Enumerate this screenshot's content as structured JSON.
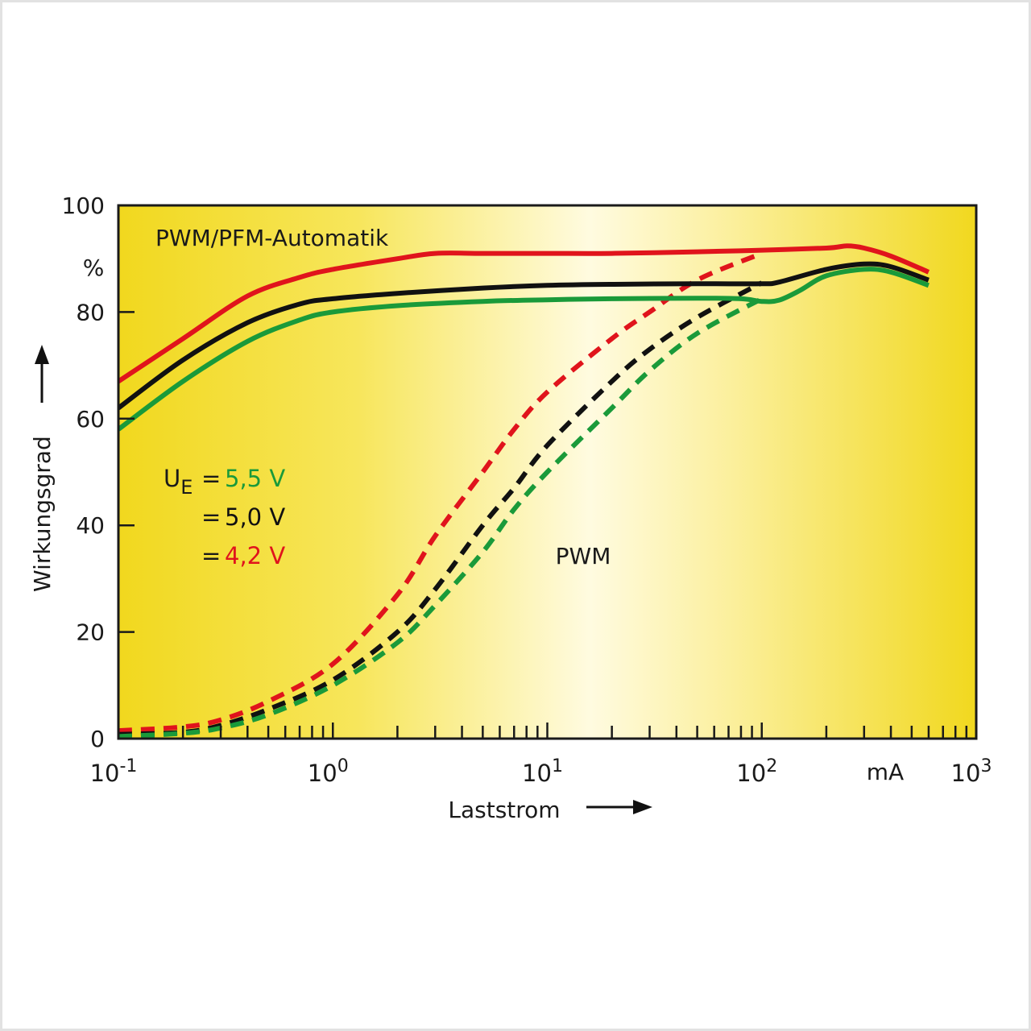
{
  "chart_data": {
    "type": "line",
    "title": "PWM/PFM-Automatik",
    "xlabel": "Laststrom",
    "ylabel": "Wirkungsgrad",
    "x_unit": "mA",
    "y_unit": "%",
    "x_scale": "log",
    "xlim": [
      0.1,
      1000
    ],
    "ylim": [
      0,
      100
    ],
    "x_ticks": [
      {
        "base": "10",
        "exp": "-1"
      },
      {
        "base": "10",
        "exp": "0"
      },
      {
        "base": "10",
        "exp": "1"
      },
      {
        "base": "10",
        "exp": "2"
      },
      {
        "base": "10",
        "exp": "3"
      }
    ],
    "y_ticks": [
      "0",
      "20",
      "40",
      "60",
      "80",
      "100"
    ],
    "grid": false,
    "legend": {
      "symbol": "U",
      "subscript": "E",
      "entries": [
        {
          "text": "5,5 V",
          "color": "#1a9a3a"
        },
        {
          "text": "5,0 V",
          "color": "#111111"
        },
        {
          "text": "4,2 V",
          "color": "#e0141c"
        }
      ]
    },
    "annotations": {
      "pwm_label": "PWM"
    },
    "series": [
      {
        "group": "PWM/PFM-Automatik",
        "voltage": "4,2 V",
        "color": "#e0141c",
        "dash": false,
        "x": [
          0.1,
          0.2,
          0.4,
          0.7,
          1,
          2,
          3,
          5,
          10,
          20,
          50,
          100,
          200,
          250,
          300,
          400,
          600
        ],
        "y": [
          67,
          75,
          83,
          86.5,
          88,
          90,
          91,
          91,
          91,
          91,
          91.3,
          91.6,
          92,
          92.4,
          92,
          90.5,
          87.5
        ]
      },
      {
        "group": "PWM/PFM-Automatik",
        "voltage": "5,0 V",
        "color": "#111111",
        "dash": false,
        "x": [
          0.1,
          0.2,
          0.4,
          0.7,
          1,
          2,
          5,
          10,
          20,
          50,
          100,
          120,
          200,
          300,
          400,
          600
        ],
        "y": [
          62,
          71,
          78,
          81.5,
          82.5,
          83.5,
          84.5,
          85,
          85.2,
          85.3,
          85.3,
          85.6,
          88,
          89,
          88.5,
          86
        ]
      },
      {
        "group": "PWM/PFM-Automatik",
        "voltage": "5,5 V",
        "color": "#1a9a3a",
        "dash": false,
        "x": [
          0.1,
          0.2,
          0.4,
          0.7,
          1,
          2,
          5,
          10,
          20,
          50,
          80,
          100,
          120,
          150,
          200,
          300,
          400,
          600
        ],
        "y": [
          58,
          67,
          74.5,
          78.5,
          80,
          81.2,
          82,
          82.3,
          82.5,
          82.6,
          82.5,
          82,
          82.2,
          84,
          86.8,
          88,
          87.5,
          85
        ]
      },
      {
        "group": "PWM",
        "voltage": "4,2 V",
        "color": "#e0141c",
        "dash": true,
        "x": [
          0.1,
          0.2,
          0.3,
          0.5,
          1,
          2,
          3,
          5,
          7,
          10,
          20,
          30,
          50,
          100
        ],
        "y": [
          1.5,
          2.2,
          3.5,
          7,
          14,
          27,
          38,
          50,
          58,
          65,
          75,
          80,
          86,
          91
        ]
      },
      {
        "group": "PWM",
        "voltage": "5,0 V",
        "color": "#111111",
        "dash": true,
        "x": [
          0.1,
          0.2,
          0.3,
          0.5,
          1,
          2,
          3,
          5,
          7,
          10,
          20,
          30,
          50,
          100
        ],
        "y": [
          0.8,
          1.2,
          2.5,
          5.5,
          11,
          20,
          28,
          40,
          47,
          55,
          67,
          73,
          79,
          85.5
        ]
      },
      {
        "group": "PWM",
        "voltage": "5,5 V",
        "color": "#1a9a3a",
        "dash": true,
        "x": [
          0.1,
          0.2,
          0.3,
          0.5,
          1,
          2,
          3,
          5,
          7,
          10,
          20,
          30,
          50,
          100
        ],
        "y": [
          0.4,
          1,
          2,
          4.5,
          10,
          18,
          25,
          35,
          43,
          50,
          62,
          69,
          76,
          82.5
        ]
      }
    ]
  }
}
